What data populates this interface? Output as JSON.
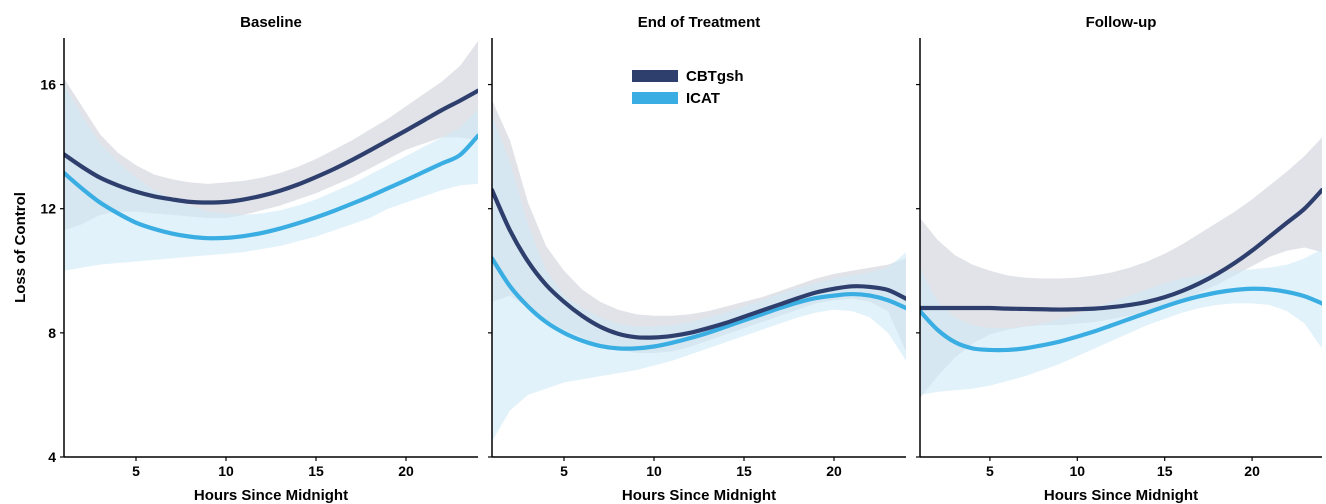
{
  "chart_data": {
    "type": "line",
    "ylabel": "Loss of Control",
    "xlabel": "Hours Since Midnight",
    "xlim": [
      1,
      24
    ],
    "ylim": [
      4,
      17.5
    ],
    "xticks": [
      5,
      10,
      15,
      20
    ],
    "yticks": [
      4,
      8,
      12,
      16
    ],
    "legend": {
      "placement": "top-center of middle panel",
      "entries": [
        "CBTgsh",
        "ICAT"
      ]
    },
    "colors": {
      "CBTgsh": "#2e3f6e",
      "ICAT": "#3aaee3",
      "CBTgsh_band": "#c9ccd6",
      "ICAT_band": "#cfe9f7"
    },
    "panels": [
      {
        "title": "Baseline",
        "series": [
          {
            "name": "CBTgsh",
            "x": [
              1,
              2,
              3,
              4,
              5,
              6,
              7,
              8,
              9,
              10,
              11,
              12,
              13,
              14,
              15,
              16,
              17,
              18,
              19,
              20,
              21,
              22,
              23,
              24
            ],
            "y": [
              13.75,
              13.35,
              13.0,
              12.75,
              12.55,
              12.4,
              12.3,
              12.22,
              12.2,
              12.22,
              12.3,
              12.42,
              12.58,
              12.78,
              13.02,
              13.28,
              13.57,
              13.88,
              14.2,
              14.52,
              14.85,
              15.18,
              15.48,
              15.8
            ],
            "lower": [
              11.3,
              11.5,
              11.8,
              11.9,
              11.9,
              11.85,
              11.8,
              11.75,
              11.7,
              11.7,
              11.8,
              11.95,
              12.1,
              12.3,
              12.5,
              12.75,
              13.0,
              13.3,
              13.6,
              13.9,
              14.1,
              14.3,
              14.3,
              14.2
            ],
            "upper": [
              16.2,
              15.3,
              14.4,
              13.8,
              13.4,
              13.1,
              12.95,
              12.85,
              12.8,
              12.85,
              12.9,
              13.0,
              13.15,
              13.35,
              13.6,
              13.9,
              14.2,
              14.55,
              14.9,
              15.3,
              15.7,
              16.1,
              16.6,
              17.4
            ]
          },
          {
            "name": "ICAT",
            "x": [
              1,
              2,
              3,
              4,
              5,
              6,
              7,
              8,
              9,
              10,
              11,
              12,
              13,
              14,
              15,
              16,
              17,
              18,
              19,
              20,
              21,
              22,
              23,
              24
            ],
            "y": [
              13.15,
              12.65,
              12.2,
              11.85,
              11.55,
              11.35,
              11.2,
              11.1,
              11.05,
              11.06,
              11.12,
              11.22,
              11.36,
              11.53,
              11.72,
              11.93,
              12.16,
              12.4,
              12.66,
              12.92,
              13.19,
              13.46,
              13.73,
              14.35
            ],
            "lower": [
              10.0,
              10.1,
              10.2,
              10.25,
              10.3,
              10.35,
              10.4,
              10.45,
              10.5,
              10.55,
              10.6,
              10.7,
              10.8,
              10.95,
              11.1,
              11.3,
              11.5,
              11.7,
              12.0,
              12.2,
              12.4,
              12.6,
              12.75,
              12.8
            ],
            "upper": [
              16.0,
              15.0,
              14.1,
              13.5,
              13.0,
              12.6,
              12.3,
              12.1,
              11.9,
              11.85,
              11.8,
              11.85,
              11.95,
              12.1,
              12.3,
              12.55,
              12.8,
              13.1,
              13.4,
              13.7,
              14.0,
              14.3,
              14.6,
              15.2
            ]
          }
        ]
      },
      {
        "title": "End of Treatment",
        "series": [
          {
            "name": "CBTgsh",
            "x": [
              1,
              2,
              3,
              4,
              5,
              6,
              7,
              8,
              9,
              10,
              11,
              12,
              13,
              14,
              15,
              16,
              17,
              18,
              19,
              20,
              21,
              22,
              23,
              24
            ],
            "y": [
              12.6,
              11.3,
              10.3,
              9.55,
              9.0,
              8.55,
              8.2,
              7.97,
              7.86,
              7.85,
              7.9,
              8.0,
              8.15,
              8.32,
              8.52,
              8.72,
              8.92,
              9.12,
              9.3,
              9.42,
              9.5,
              9.48,
              9.38,
              9.1
            ],
            "lower": [
              9.0,
              9.2,
              8.8,
              8.4,
              8.1,
              7.85,
              7.6,
              7.45,
              7.35,
              7.35,
              7.4,
              7.55,
              7.75,
              7.95,
              8.15,
              8.35,
              8.55,
              8.75,
              8.95,
              9.05,
              9.1,
              9.0,
              8.7,
              7.4
            ],
            "upper": [
              15.5,
              14.2,
              12.2,
              10.8,
              10.0,
              9.4,
              9.0,
              8.75,
              8.6,
              8.55,
              8.55,
              8.6,
              8.7,
              8.85,
              9.0,
              9.15,
              9.35,
              9.55,
              9.75,
              9.9,
              10.0,
              10.1,
              10.2,
              10.4
            ]
          },
          {
            "name": "ICAT",
            "x": [
              1,
              2,
              3,
              4,
              5,
              6,
              7,
              8,
              9,
              10,
              11,
              12,
              13,
              14,
              15,
              16,
              17,
              18,
              19,
              20,
              21,
              22,
              23,
              24
            ],
            "y": [
              10.4,
              9.5,
              8.85,
              8.35,
              8.0,
              7.75,
              7.58,
              7.5,
              7.5,
              7.56,
              7.68,
              7.83,
              8.0,
              8.2,
              8.4,
              8.6,
              8.8,
              8.98,
              9.12,
              9.2,
              9.25,
              9.2,
              9.05,
              8.8
            ],
            "lower": [
              4.5,
              5.5,
              6.0,
              6.2,
              6.4,
              6.5,
              6.6,
              6.7,
              6.8,
              6.95,
              7.1,
              7.3,
              7.5,
              7.7,
              7.9,
              8.1,
              8.3,
              8.5,
              8.65,
              8.75,
              8.7,
              8.5,
              8.0,
              7.1
            ],
            "upper": [
              15.0,
              13.5,
              11.5,
              10.0,
              9.2,
              8.8,
              8.5,
              8.3,
              8.2,
              8.2,
              8.25,
              8.35,
              8.5,
              8.65,
              8.85,
              9.05,
              9.25,
              9.45,
              9.6,
              9.75,
              9.85,
              9.95,
              10.1,
              10.6
            ]
          }
        ]
      },
      {
        "title": "Follow-up",
        "series": [
          {
            "name": "CBTgsh",
            "x": [
              1,
              2,
              3,
              4,
              5,
              6,
              7,
              8,
              9,
              10,
              11,
              12,
              13,
              14,
              15,
              16,
              17,
              18,
              19,
              20,
              21,
              22,
              23,
              24
            ],
            "y": [
              8.8,
              8.8,
              8.8,
              8.8,
              8.8,
              8.78,
              8.77,
              8.76,
              8.75,
              8.76,
              8.78,
              8.83,
              8.9,
              9.0,
              9.15,
              9.35,
              9.6,
              9.9,
              10.25,
              10.65,
              11.1,
              11.55,
              12.0,
              12.6
            ],
            "lower": [
              5.9,
              6.6,
              7.2,
              7.65,
              7.95,
              8.1,
              8.2,
              8.25,
              8.25,
              8.3,
              8.35,
              8.45,
              8.55,
              8.7,
              8.85,
              9.05,
              9.3,
              9.55,
              9.85,
              10.15,
              10.45,
              10.65,
              10.75,
              10.6
            ],
            "upper": [
              11.7,
              11.0,
              10.5,
              10.2,
              10.0,
              9.85,
              9.78,
              9.75,
              9.75,
              9.78,
              9.85,
              9.95,
              10.1,
              10.3,
              10.55,
              10.85,
              11.2,
              11.55,
              11.9,
              12.3,
              12.75,
              13.2,
              13.7,
              14.3
            ]
          },
          {
            "name": "ICAT",
            "x": [
              1,
              2,
              3,
              4,
              5,
              6,
              7,
              8,
              9,
              10,
              11,
              12,
              13,
              14,
              15,
              16,
              17,
              18,
              19,
              20,
              21,
              22,
              23,
              24
            ],
            "y": [
              8.7,
              8.1,
              7.7,
              7.5,
              7.45,
              7.45,
              7.5,
              7.6,
              7.72,
              7.88,
              8.05,
              8.25,
              8.45,
              8.65,
              8.85,
              9.03,
              9.18,
              9.3,
              9.38,
              9.42,
              9.4,
              9.32,
              9.18,
              8.95
            ],
            "lower": [
              6.0,
              6.1,
              6.15,
              6.2,
              6.3,
              6.45,
              6.6,
              6.8,
              7.0,
              7.25,
              7.5,
              7.75,
              8.0,
              8.25,
              8.45,
              8.65,
              8.8,
              8.9,
              8.95,
              8.95,
              8.9,
              8.7,
              8.3,
              7.5
            ],
            "upper": [
              10.1,
              9.0,
              8.5,
              8.25,
              8.15,
              8.15,
              8.2,
              8.3,
              8.45,
              8.6,
              8.8,
              9.0,
              9.2,
              9.4,
              9.6,
              9.75,
              9.85,
              9.95,
              10.0,
              10.05,
              10.1,
              10.2,
              10.4,
              10.7
            ]
          }
        ]
      }
    ]
  }
}
